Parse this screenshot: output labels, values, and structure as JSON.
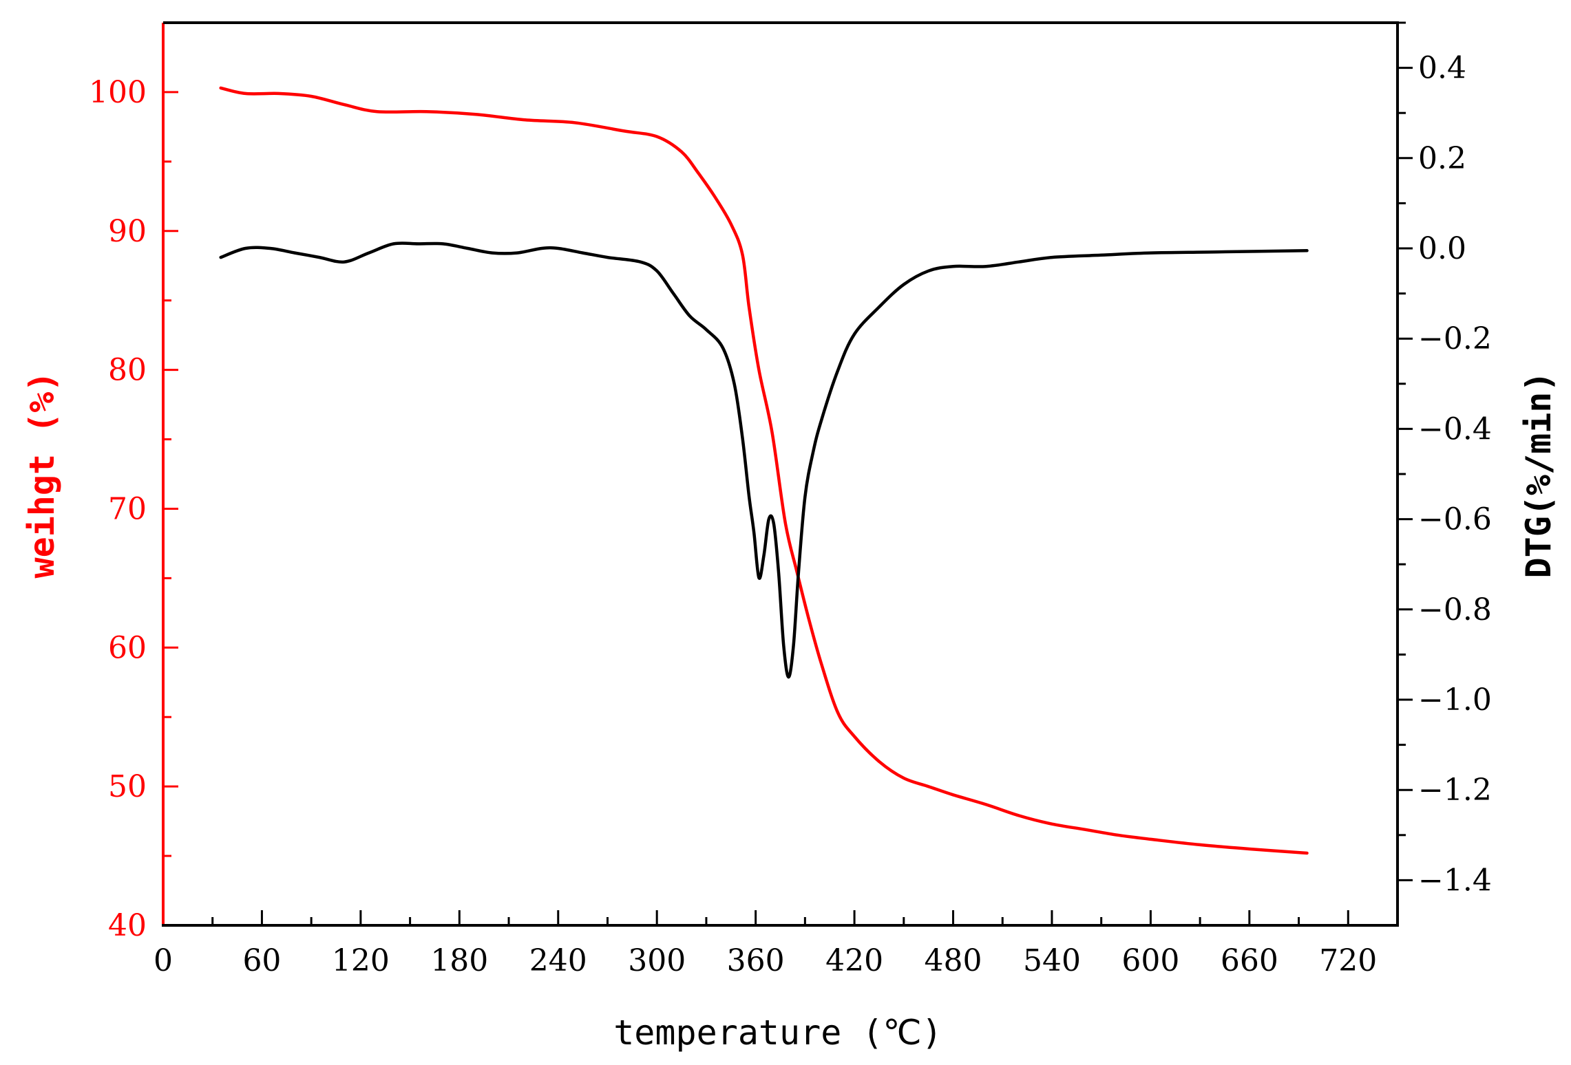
{
  "chart_data": {
    "type": "line",
    "xlabel": "temperature (℃)",
    "ylabel_left": "weihgt (%)",
    "ylabel_right": "DTG(%/min)",
    "xlim": [
      0,
      750
    ],
    "ylim_left": [
      40,
      105
    ],
    "ylim_right": [
      -1.5,
      0.5
    ],
    "x_ticks": [
      0,
      60,
      120,
      180,
      240,
      300,
      360,
      420,
      480,
      540,
      600,
      660,
      720
    ],
    "x_tick_labels": [
      "0",
      "60",
      "120",
      "180",
      "240",
      "300",
      "360",
      "420",
      "480",
      "540",
      "600",
      "660",
      "720"
    ],
    "y_left_ticks": [
      40,
      50,
      60,
      70,
      80,
      90,
      100
    ],
    "y_left_tick_labels": [
      "40",
      "50",
      "60",
      "70",
      "80",
      "90",
      "100"
    ],
    "y_right_ticks": [
      0.4,
      0.2,
      0.0,
      -0.2,
      -0.4,
      -0.6,
      -0.8,
      -1.0,
      -1.2,
      -1.4
    ],
    "y_right_tick_labels": [
      "0.4",
      "0.2",
      "0.0",
      "−0.2",
      "−0.4",
      "−0.6",
      "−0.8",
      "−1.0",
      "−1.2",
      "−1.4"
    ],
    "colors": {
      "weight": "#ff0000",
      "dtg": "#000000",
      "left_axis": "#ff0000",
      "frame": "#000000"
    },
    "series": [
      {
        "name": "weight",
        "axis": "left",
        "color": "#ff0000",
        "x": [
          35,
          50,
          70,
          90,
          110,
          130,
          160,
          190,
          220,
          250,
          280,
          300,
          315,
          325,
          335,
          345,
          352,
          356,
          362,
          370,
          378,
          385,
          392,
          400,
          410,
          420,
          435,
          450,
          465,
          480,
          500,
          520,
          540,
          560,
          580,
          600,
          630,
          660,
          695
        ],
        "values": [
          100.3,
          99.9,
          99.9,
          99.7,
          99.1,
          98.6,
          98.6,
          98.4,
          98.0,
          97.8,
          97.2,
          96.8,
          95.7,
          94.2,
          92.5,
          90.5,
          88.3,
          84.5,
          80.0,
          75.5,
          69.0,
          65.5,
          62.2,
          58.8,
          55.3,
          53.6,
          51.8,
          50.6,
          50.0,
          49.4,
          48.7,
          47.9,
          47.3,
          46.9,
          46.5,
          46.2,
          45.8,
          45.5,
          45.2
        ]
      },
      {
        "name": "DTG",
        "axis": "right",
        "color": "#000000",
        "x": [
          35,
          50,
          65,
          80,
          95,
          110,
          125,
          140,
          155,
          170,
          185,
          200,
          215,
          230,
          240,
          255,
          270,
          290,
          300,
          310,
          320,
          330,
          340,
          347,
          352,
          356,
          359,
          362,
          365,
          368,
          371,
          374,
          377,
          380,
          383,
          386,
          390,
          395,
          400,
          410,
          420,
          435,
          450,
          465,
          480,
          500,
          520,
          540,
          570,
          600,
          640,
          695
        ],
        "values": [
          -0.02,
          0.0,
          0.0,
          -0.01,
          -0.02,
          -0.03,
          -0.01,
          0.01,
          0.01,
          0.01,
          0.0,
          -0.01,
          -0.01,
          0.0,
          0.0,
          -0.01,
          -0.02,
          -0.03,
          -0.05,
          -0.1,
          -0.15,
          -0.18,
          -0.22,
          -0.3,
          -0.42,
          -0.55,
          -0.63,
          -0.73,
          -0.68,
          -0.6,
          -0.61,
          -0.72,
          -0.88,
          -0.95,
          -0.88,
          -0.72,
          -0.55,
          -0.45,
          -0.38,
          -0.27,
          -0.19,
          -0.13,
          -0.08,
          -0.05,
          -0.04,
          -0.04,
          -0.03,
          -0.02,
          -0.015,
          -0.01,
          -0.008,
          -0.005
        ]
      }
    ]
  }
}
